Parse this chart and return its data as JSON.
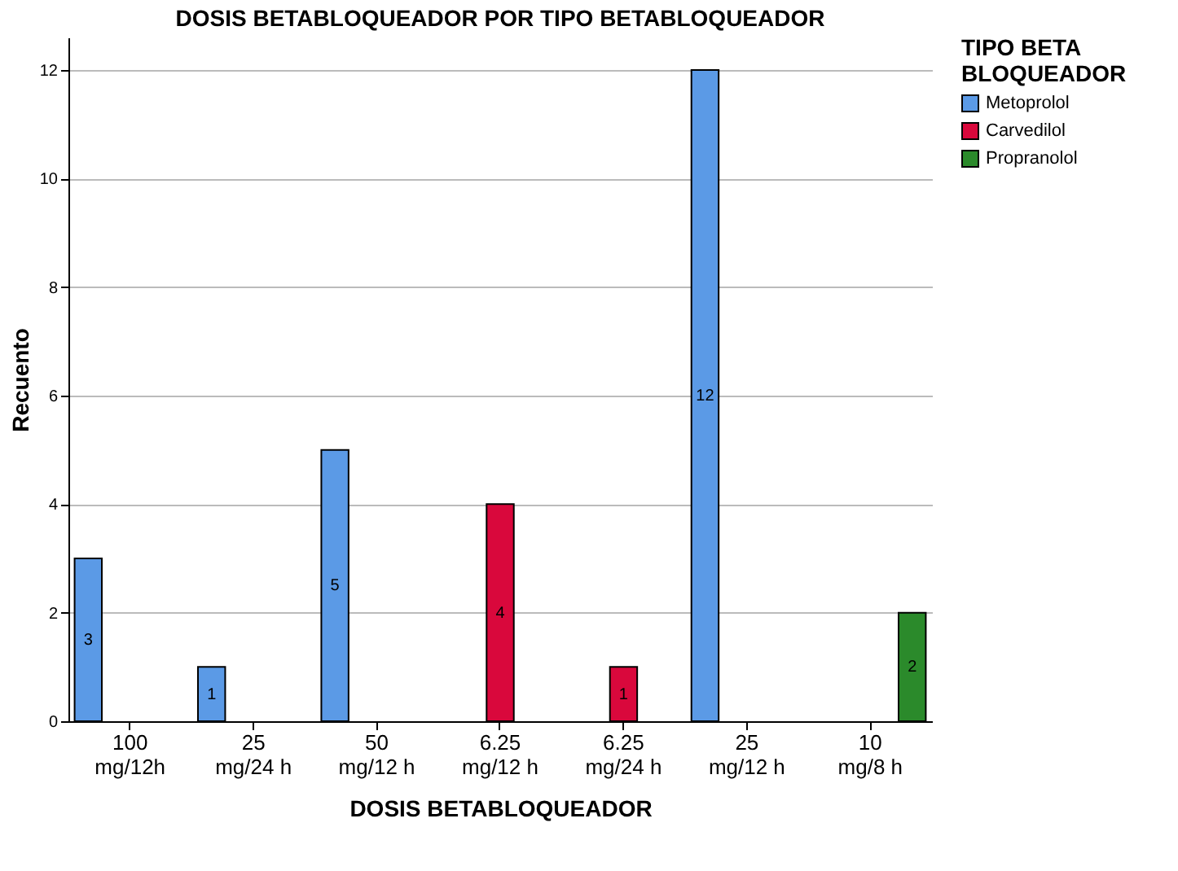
{
  "chart_data": {
    "type": "bar",
    "title": "DOSIS BETABLOQUEADOR POR TIPO BETABLOQUEADOR",
    "xlabel": "DOSIS BETABLOQUEADOR",
    "ylabel": "Recuento",
    "legend_title": "TIPO BETA BLOQUEADOR",
    "categories": [
      "100 mg/12h",
      "25 mg/24 h",
      "50 mg/12 h",
      "6.25 mg/12 h",
      "6.25 mg/24 h",
      "25 mg/12 h",
      "10 mg/8 h"
    ],
    "series": [
      {
        "name": "Metoprolol",
        "color": "#5b9ae6",
        "values": [
          3,
          1,
          5,
          null,
          null,
          12,
          null
        ]
      },
      {
        "name": "Carvedilol",
        "color": "#d9083c",
        "values": [
          null,
          null,
          null,
          4,
          1,
          null,
          null
        ]
      },
      {
        "name": "Propranolol",
        "color": "#2b8a2b",
        "values": [
          null,
          null,
          null,
          null,
          null,
          null,
          2
        ]
      }
    ],
    "ylim": [
      0,
      12.6
    ],
    "yticks": [
      0,
      2,
      4,
      6,
      8,
      10,
      12
    ],
    "grid": "y",
    "legend": "top right",
    "data_labels": true
  }
}
